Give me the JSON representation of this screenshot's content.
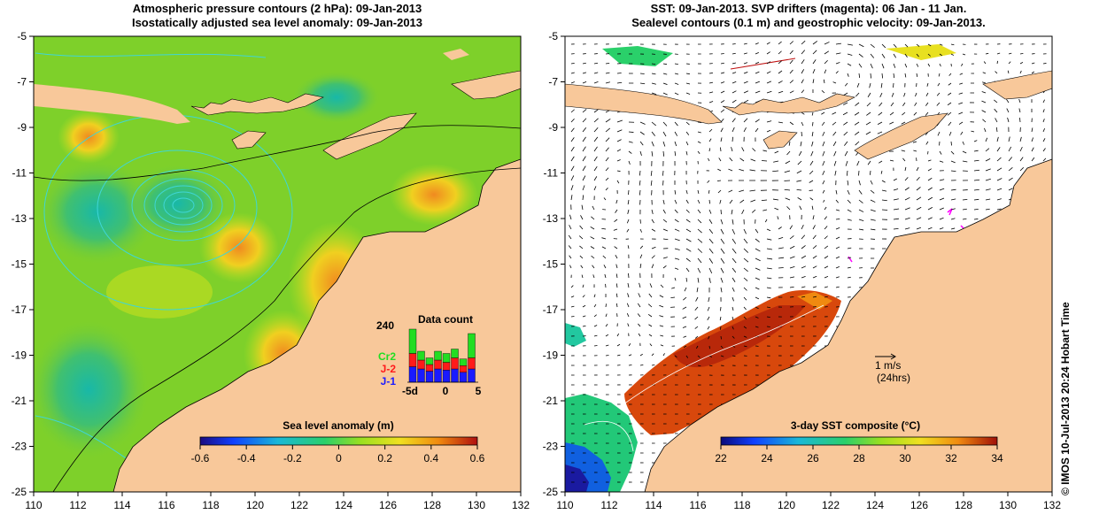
{
  "left_panel": {
    "title_line1": "Atmospheric pressure contours (2 hPa): 09-Jan-2013",
    "title_line2": "Isostatically adjusted sea level anomaly: 09-Jan-2013",
    "colorbar_label": "Sea level anomaly (m)",
    "colorbar_ticks": [
      "-0.6",
      "-0.4",
      "-0.2",
      "0",
      "0.2",
      "0.4",
      "0.6"
    ],
    "inset": {
      "title": "Data count",
      "ymax_label": "240",
      "x_labels": [
        "-5d",
        "0",
        "5"
      ],
      "legend": [
        {
          "label": "Cr2",
          "color": "#22dd22"
        },
        {
          "label": "J-2",
          "color": "#ff1a1a"
        },
        {
          "label": "J-1",
          "color": "#1a1aff"
        }
      ],
      "bars": [
        {
          "j1": 70,
          "j2": 60,
          "cr2": 110
        },
        {
          "j1": 60,
          "j2": 40,
          "cr2": 40
        },
        {
          "j1": 50,
          "j2": 30,
          "cr2": 30
        },
        {
          "j1": 60,
          "j2": 40,
          "cr2": 40
        },
        {
          "j1": 55,
          "j2": 35,
          "cr2": 40
        },
        {
          "j1": 60,
          "j2": 50,
          "cr2": 40
        },
        {
          "j1": 45,
          "j2": 30,
          "cr2": 30
        },
        {
          "j1": 60,
          "j2": 50,
          "cr2": 110
        }
      ]
    }
  },
  "right_panel": {
    "title_line1": "SST: 09-Jan-2013. SVP drifters (magenta): 06 Jan - 11 Jan.",
    "title_line2": "Sealevel contours (0.1 m) and geostrophic velocity: 09-Jan-2013.",
    "colorbar_label": "3-day SST composite (°C)",
    "colorbar_ticks": [
      "22",
      "24",
      "26",
      "28",
      "30",
      "32",
      "34"
    ],
    "scale_label_line1": "1 m/s",
    "scale_label_line2": "(24hrs)"
  },
  "axes": {
    "lon_ticks": [
      "110",
      "112",
      "114",
      "116",
      "118",
      "120",
      "122",
      "124",
      "126",
      "128",
      "130",
      "132"
    ],
    "lat_ticks": [
      "-5",
      "-7",
      "-9",
      "-11",
      "-13",
      "-15",
      "-17",
      "-19",
      "-21",
      "-23",
      "-25"
    ]
  },
  "credit": "© IMOS 10-Jul-2013 20:24 Hobart Time",
  "colors": {
    "land": "#f8c89a",
    "ocean_green": "#7ed02a",
    "contour_cyan": "#3fd6d6"
  }
}
